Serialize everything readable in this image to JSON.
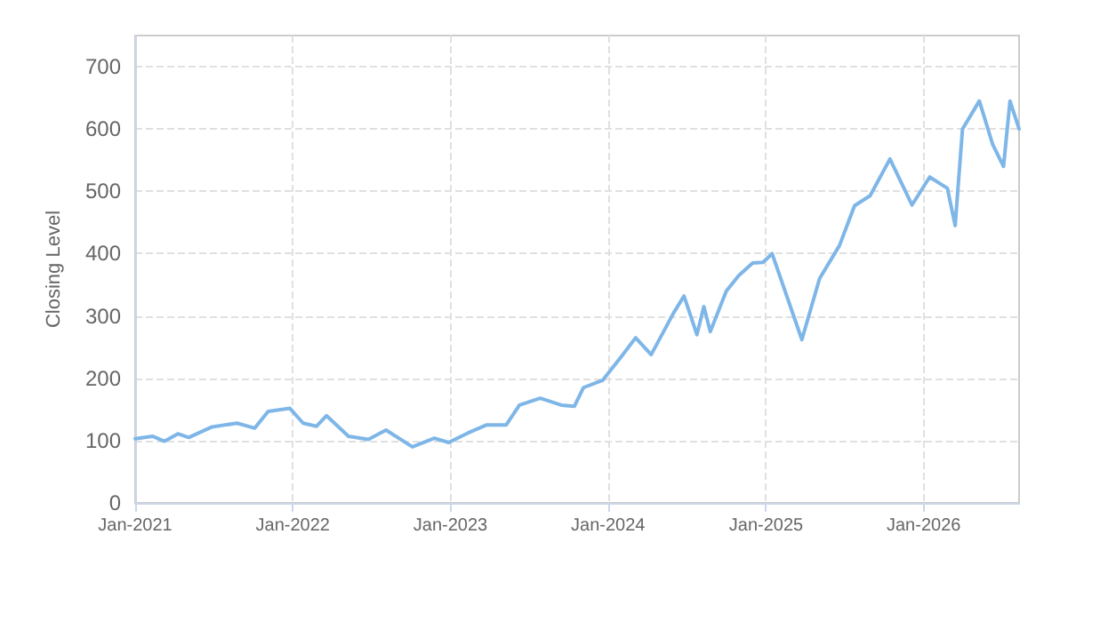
{
  "chart_data": {
    "type": "line",
    "ylabel": "Closing Level",
    "x": [
      "2021-01-01",
      "2021-02-10",
      "2021-03-10",
      "2021-04-10",
      "2021-05-05",
      "2021-06-28",
      "2021-08-25",
      "2021-10-05",
      "2021-11-05",
      "2021-12-25",
      "2022-01-25",
      "2022-02-25",
      "2022-03-20",
      "2022-05-10",
      "2022-06-25",
      "2022-08-05",
      "2022-10-05",
      "2022-11-25",
      "2022-12-28",
      "2023-02-10",
      "2023-03-25",
      "2023-05-10",
      "2023-06-10",
      "2023-07-28",
      "2023-09-15",
      "2023-10-15",
      "2023-11-05",
      "2023-12-20",
      "2024-02-01",
      "2024-03-05",
      "2024-04-10",
      "2024-06-01",
      "2024-06-25",
      "2024-07-25",
      "2024-08-10",
      "2024-08-25",
      "2024-10-01",
      "2024-10-30",
      "2024-12-01",
      "2024-12-25",
      "2025-01-15",
      "2025-03-25",
      "2025-05-05",
      "2025-06-20",
      "2025-07-25",
      "2025-08-30",
      "2025-10-15",
      "2025-12-05",
      "2026-01-15",
      "2026-02-25",
      "2026-03-15",
      "2026-04-01",
      "2026-05-10",
      "2026-06-10",
      "2026-07-05",
      "2026-07-20",
      "2026-08-10"
    ],
    "series": [
      {
        "color": "#7eb6e8",
        "values": [
          103,
          107,
          99,
          111,
          105,
          122,
          128,
          120,
          147,
          152,
          128,
          123,
          140,
          107,
          102,
          117,
          90,
          104,
          97,
          112,
          125,
          125,
          157,
          168,
          157,
          155,
          185,
          197,
          235,
          265,
          238,
          305,
          332,
          270,
          315,
          275,
          340,
          365,
          385,
          386,
          400,
          262,
          360,
          413,
          477,
          493,
          552,
          478,
          523,
          505,
          445,
          600,
          645,
          575,
          540,
          645,
          600
        ]
      }
    ],
    "xlim": [
      "2021-01-01",
      "2026-08-10"
    ],
    "xticks": [
      {
        "value": "2021-01-01",
        "label": "Jan-2021"
      },
      {
        "value": "2022-01-01",
        "label": "Jan-2022"
      },
      {
        "value": "2023-01-01",
        "label": "Jan-2023"
      },
      {
        "value": "2024-01-01",
        "label": "Jan-2024"
      },
      {
        "value": "2025-01-01",
        "label": "Jan-2025"
      },
      {
        "value": "2026-01-01",
        "label": "Jan-2026"
      }
    ],
    "ylim": [
      0,
      750
    ],
    "yticks": [
      0,
      100,
      200,
      300,
      400,
      500,
      600,
      700
    ],
    "grid": true,
    "marker": "none",
    "line_style": "solid"
  }
}
